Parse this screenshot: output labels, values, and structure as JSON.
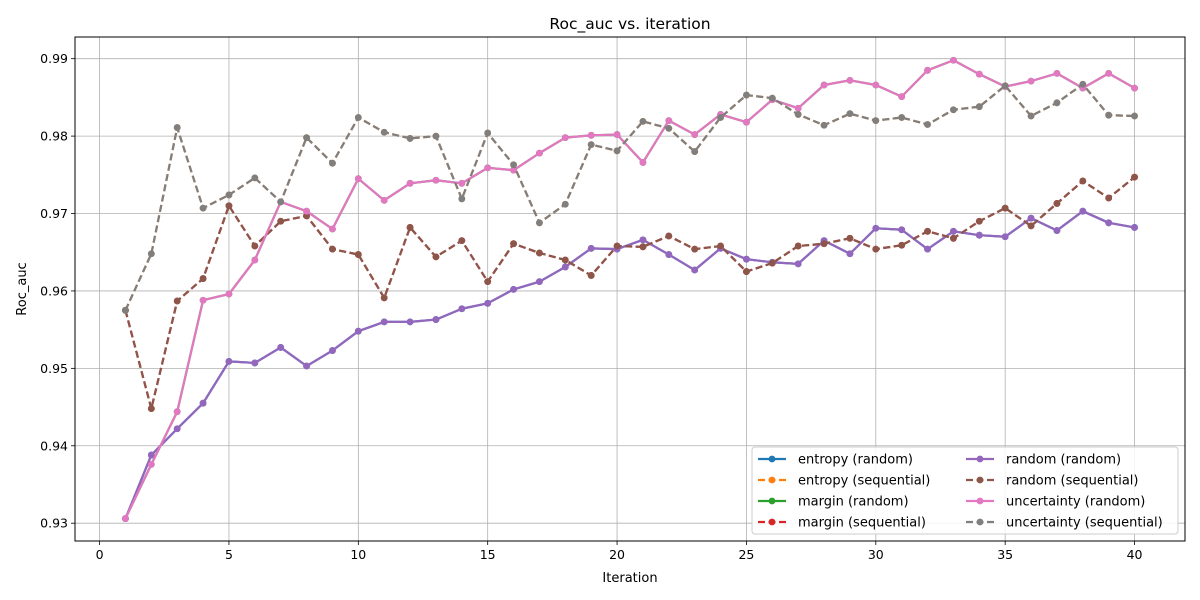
{
  "chart_data": {
    "type": "line",
    "title": "Roc_auc vs. iteration",
    "xlabel": "Iteration",
    "ylabel": "Roc_auc",
    "xlim": [
      -0.95,
      41.95
    ],
    "ylim": [
      0.9277,
      0.9928
    ],
    "xticks": [
      0,
      5,
      10,
      15,
      20,
      25,
      30,
      35,
      40
    ],
    "yticks": [
      0.93,
      0.94,
      0.95,
      0.96,
      0.97,
      0.98,
      0.99
    ],
    "ytick_labels": [
      "0.93",
      "0.94",
      "0.95",
      "0.96",
      "0.97",
      "0.98",
      "0.99"
    ],
    "grid": true,
    "legend_position": "lower-right",
    "legend_columns": 2,
    "x": [
      1,
      2,
      3,
      4,
      5,
      6,
      7,
      8,
      9,
      10,
      11,
      12,
      13,
      14,
      15,
      16,
      17,
      18,
      19,
      20,
      21,
      22,
      23,
      24,
      25,
      26,
      27,
      28,
      29,
      30,
      31,
      32,
      33,
      34,
      35,
      36,
      37,
      38,
      39,
      40
    ],
    "series": [
      {
        "name": "entropy (random)",
        "color": "#1f77b4",
        "dash": "solid",
        "values": [
          0.9306,
          0.9388,
          0.9422,
          0.9455,
          0.9509,
          0.9507,
          0.9527,
          0.9503,
          0.9523,
          0.9548,
          0.956,
          0.956,
          0.9563,
          0.9577,
          0.9584,
          0.9602,
          0.9612,
          0.9631,
          0.9655,
          0.9654,
          0.9666,
          0.9647,
          0.9627,
          0.9655,
          0.9641,
          0.9637,
          0.9635,
          0.9665,
          0.9648,
          0.9681,
          0.9679,
          0.9654,
          0.9677,
          0.9672,
          0.967,
          0.9694,
          0.9678,
          0.9703,
          0.9688,
          0.9682
        ]
      },
      {
        "name": "entropy (sequential)",
        "color": "#ff7f0e",
        "dash": "dashed",
        "values": [
          0.9575,
          0.9648,
          0.9811,
          0.9707,
          0.9724,
          0.9746,
          0.9715,
          0.9798,
          0.9765,
          0.9824,
          0.9805,
          0.9797,
          0.98,
          0.9719,
          0.9804,
          0.9763,
          0.9688,
          0.9712,
          0.9789,
          0.9781,
          0.9819,
          0.981,
          0.978,
          0.9824,
          0.9853,
          0.9849,
          0.9828,
          0.9814,
          0.9829,
          0.982,
          0.9824,
          0.9815,
          0.9834,
          0.9838,
          0.9865,
          0.9826,
          0.9843,
          0.9867,
          0.9827,
          0.9826
        ]
      },
      {
        "name": "margin (random)",
        "color": "#2ca02c",
        "dash": "solid",
        "values": [
          0.9306,
          0.9376,
          0.9444,
          0.9588,
          0.9596,
          0.964,
          0.9715,
          0.9703,
          0.968,
          0.9745,
          0.9717,
          0.9739,
          0.9743,
          0.9739,
          0.9759,
          0.9756,
          0.9778,
          0.9798,
          0.9801,
          0.9802,
          0.9766,
          0.982,
          0.9802,
          0.9828,
          0.9818,
          0.9847,
          0.9836,
          0.9866,
          0.9872,
          0.9866,
          0.9851,
          0.9885,
          0.9898,
          0.988,
          0.9864,
          0.9871,
          0.9881,
          0.9862,
          0.9881,
          0.9862
        ]
      },
      {
        "name": "margin (sequential)",
        "color": "#d62728",
        "dash": "dashed",
        "values": [
          0.9575,
          0.9448,
          0.9587,
          0.9616,
          0.971,
          0.9658,
          0.969,
          0.9697,
          0.9654,
          0.9647,
          0.9591,
          0.9682,
          0.9644,
          0.9665,
          0.9612,
          0.9661,
          0.9649,
          0.964,
          0.962,
          0.9658,
          0.9657,
          0.9671,
          0.9654,
          0.9658,
          0.9625,
          0.9636,
          0.9658,
          0.9661,
          0.9668,
          0.9654,
          0.9659,
          0.9677,
          0.9668,
          0.969,
          0.9707,
          0.9684,
          0.9713,
          0.9742,
          0.972,
          0.9747
        ]
      },
      {
        "name": "random (random)",
        "color": "#9467bd",
        "dash": "solid",
        "values": [
          0.9306,
          0.9388,
          0.9422,
          0.9455,
          0.9509,
          0.9507,
          0.9527,
          0.9503,
          0.9523,
          0.9548,
          0.956,
          0.956,
          0.9563,
          0.9577,
          0.9584,
          0.9602,
          0.9612,
          0.9631,
          0.9655,
          0.9654,
          0.9666,
          0.9647,
          0.9627,
          0.9655,
          0.9641,
          0.9637,
          0.9635,
          0.9665,
          0.9648,
          0.9681,
          0.9679,
          0.9654,
          0.9677,
          0.9672,
          0.967,
          0.9694,
          0.9678,
          0.9703,
          0.9688,
          0.9682
        ]
      },
      {
        "name": "random (sequential)",
        "color": "#8c564b",
        "dash": "dashed",
        "values": [
          0.9575,
          0.9448,
          0.9587,
          0.9616,
          0.971,
          0.9658,
          0.969,
          0.9697,
          0.9654,
          0.9647,
          0.9591,
          0.9682,
          0.9644,
          0.9665,
          0.9612,
          0.9661,
          0.9649,
          0.964,
          0.962,
          0.9658,
          0.9657,
          0.9671,
          0.9654,
          0.9658,
          0.9625,
          0.9636,
          0.9658,
          0.9661,
          0.9668,
          0.9654,
          0.9659,
          0.9677,
          0.9668,
          0.969,
          0.9707,
          0.9684,
          0.9713,
          0.9742,
          0.972,
          0.9747
        ]
      },
      {
        "name": "uncertainty (random)",
        "color": "#e377c2",
        "dash": "solid",
        "values": [
          0.9306,
          0.9376,
          0.9444,
          0.9588,
          0.9596,
          0.964,
          0.9715,
          0.9703,
          0.968,
          0.9745,
          0.9717,
          0.9739,
          0.9743,
          0.9739,
          0.9759,
          0.9756,
          0.9778,
          0.9798,
          0.9801,
          0.9802,
          0.9766,
          0.982,
          0.9802,
          0.9828,
          0.9818,
          0.9847,
          0.9836,
          0.9866,
          0.9872,
          0.9866,
          0.9851,
          0.9885,
          0.9898,
          0.988,
          0.9864,
          0.9871,
          0.9881,
          0.9862,
          0.9881,
          0.9862
        ]
      },
      {
        "name": "uncertainty (sequential)",
        "color": "#7f7f7f",
        "dash": "dashed",
        "values": [
          0.9575,
          0.9648,
          0.9811,
          0.9707,
          0.9724,
          0.9746,
          0.9715,
          0.9798,
          0.9765,
          0.9824,
          0.9805,
          0.9797,
          0.98,
          0.9719,
          0.9804,
          0.9763,
          0.9688,
          0.9712,
          0.9789,
          0.9781,
          0.9819,
          0.981,
          0.978,
          0.9824,
          0.9853,
          0.9849,
          0.9828,
          0.9814,
          0.9829,
          0.982,
          0.9824,
          0.9815,
          0.9834,
          0.9838,
          0.9865,
          0.9826,
          0.9843,
          0.9867,
          0.9827,
          0.9826
        ]
      }
    ]
  }
}
